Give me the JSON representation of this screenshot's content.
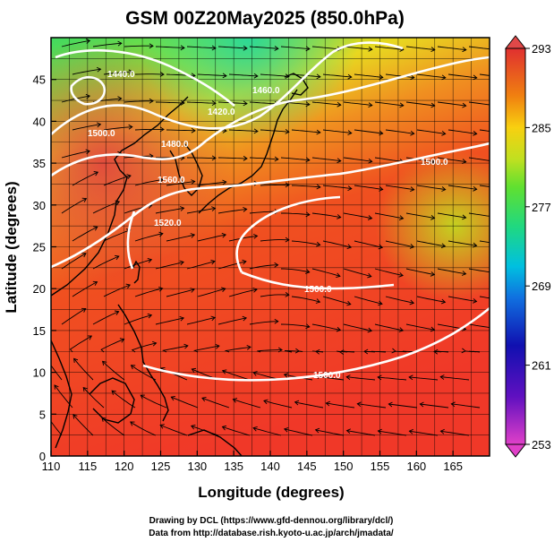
{
  "title": "GSM 00Z20May2025 (850.0hPa)",
  "x_axis": {
    "label": "Longitude (degrees)",
    "ticks": [
      "110",
      "115",
      "120",
      "125",
      "130",
      "135",
      "140",
      "145",
      "150",
      "155",
      "160",
      "165"
    ],
    "range": [
      110,
      170
    ]
  },
  "y_axis": {
    "label": "Latitude  (degrees)",
    "ticks": [
      "0",
      "5",
      "10",
      "15",
      "20",
      "25",
      "30",
      "35",
      "40",
      "45"
    ],
    "range": [
      0,
      50
    ]
  },
  "colorbar": {
    "ticks": [
      "253",
      "261",
      "269",
      "277",
      "285",
      "293"
    ],
    "range": [
      253,
      293
    ],
    "colors": [
      "#e040c8",
      "#7010c0",
      "#1010b0",
      "#1060d0",
      "#00b0e0",
      "#00d8a0",
      "#40e040",
      "#a0e020",
      "#f0d010",
      "#f08010",
      "#f04020",
      "#e03030"
    ]
  },
  "contour_labels": [
    "1440.0",
    "1500.0",
    "1460.0",
    "1420.0",
    "1560.0",
    "1520.0",
    "1480.0",
    "1500.0",
    "1500.0",
    "1500.0"
  ],
  "credits": {
    "line1": "Drawing by DCL (https://www.gfd-dennou.org/library/dcl/)",
    "line2": "Data from http://database.rish.kyoto-u.ac.jp/arch/jmadata/"
  },
  "colors": {
    "contour": "#ffffff",
    "streamline": "#000000",
    "coastline": "#000000",
    "grid": "#000000"
  }
}
